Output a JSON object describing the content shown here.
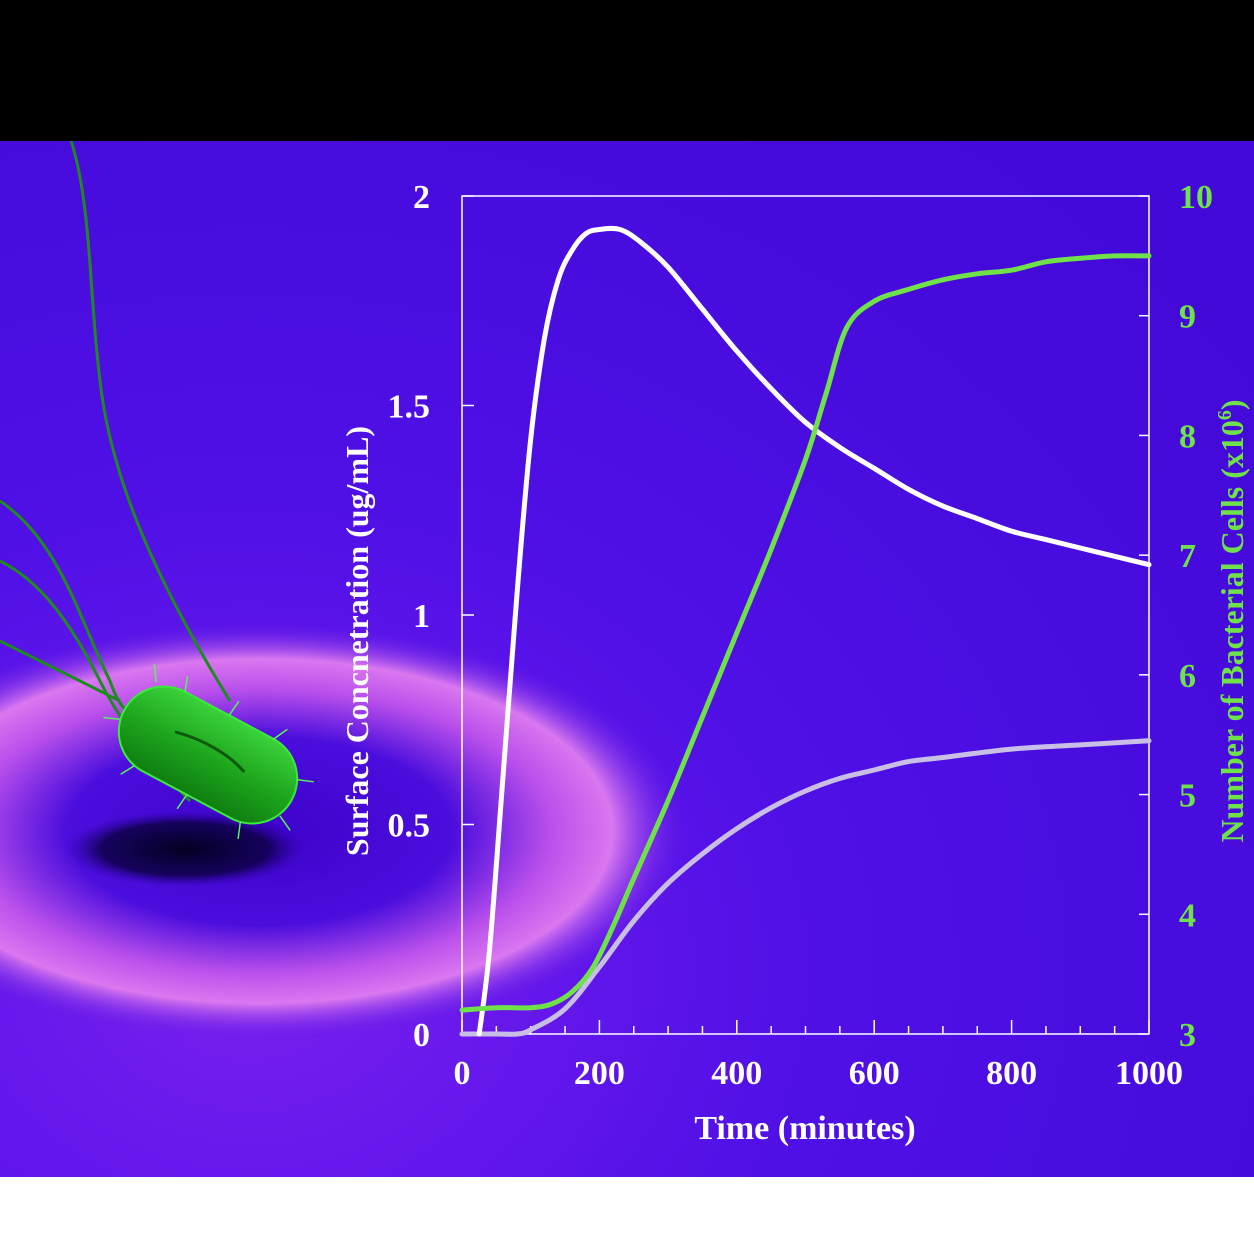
{
  "colors": {
    "background": "#4b0fe0",
    "axis": "#ffffff",
    "left_axis_text": "#ffffff",
    "right_axis_text": "#6fe24a",
    "series_concentration": "#ffffff",
    "series_concentration_faded": "#c9bfe6",
    "series_cells": "#6fe24a",
    "bacterium": "#1fb31f",
    "surface_glow": "#e86fe6"
  },
  "illustration": {
    "bacterium_icon": "rod-bacterium-with-flagella",
    "surface": "ring-shaped-surface"
  },
  "chart_data": {
    "type": "line",
    "xlabel": "Time (minutes)",
    "ylabel": "Surface Concnetration (ug/mL)",
    "y2label": "Number of Bacterial Cells (x10",
    "y2label_sup": "6",
    "y2label_close": ")",
    "xlim": [
      0,
      1000
    ],
    "ylim": [
      0,
      2
    ],
    "y2lim": [
      3,
      10
    ],
    "x_ticks": [
      0,
      200,
      400,
      600,
      800,
      1000
    ],
    "x_tick_labels": [
      "0",
      "200",
      "400",
      "600",
      "800",
      "1000"
    ],
    "x_minor_step": 50,
    "y_ticks": [
      0,
      0.5,
      1,
      1.5,
      2
    ],
    "y_tick_labels": [
      "0",
      "0.5",
      "1",
      "1.5",
      "2"
    ],
    "y2_ticks": [
      3,
      4,
      5,
      6,
      7,
      8,
      9,
      10
    ],
    "y2_tick_labels": [
      "3",
      "4",
      "5",
      "6",
      "7",
      "8",
      "9",
      "10"
    ],
    "grid": false,
    "series": [
      {
        "axis": "left",
        "x": [
          25,
          40,
          60,
          80,
          100,
          120,
          140,
          160,
          180,
          200,
          230,
          260,
          300,
          350,
          400,
          450,
          500,
          550,
          600,
          650,
          700,
          750,
          800,
          850,
          900,
          950,
          1000
        ],
        "y": [
          0.0,
          0.2,
          0.62,
          1.05,
          1.42,
          1.66,
          1.8,
          1.87,
          1.91,
          1.92,
          1.92,
          1.89,
          1.83,
          1.73,
          1.63,
          1.54,
          1.46,
          1.4,
          1.35,
          1.3,
          1.26,
          1.23,
          1.2,
          1.18,
          1.16,
          1.14,
          1.12
        ]
      },
      {
        "axis": "left",
        "x": [
          0,
          50,
          80,
          100,
          150,
          200,
          250,
          300,
          350,
          400,
          450,
          500,
          550,
          600,
          650,
          700,
          800,
          900,
          1000
        ],
        "y": [
          0.0,
          0.0,
          0.0,
          0.01,
          0.06,
          0.16,
          0.27,
          0.36,
          0.43,
          0.49,
          0.54,
          0.58,
          0.61,
          0.63,
          0.65,
          0.66,
          0.68,
          0.69,
          0.7
        ]
      },
      {
        "axis": "right",
        "x": [
          0,
          50,
          100,
          130,
          160,
          190,
          220,
          250,
          300,
          350,
          400,
          450,
          500,
          530,
          560,
          600,
          650,
          700,
          750,
          800,
          850,
          900,
          950,
          1000
        ],
        "y": [
          3.2,
          3.22,
          3.22,
          3.25,
          3.35,
          3.55,
          3.9,
          4.3,
          4.95,
          5.65,
          6.35,
          7.05,
          7.8,
          8.35,
          8.9,
          9.12,
          9.22,
          9.3,
          9.35,
          9.38,
          9.45,
          9.48,
          9.5,
          9.5
        ]
      }
    ]
  }
}
